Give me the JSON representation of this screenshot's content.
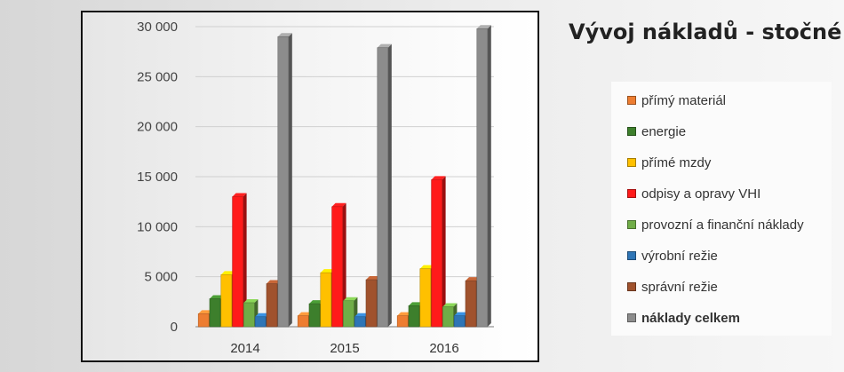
{
  "chart_data": {
    "type": "bar",
    "title": "Vývoj nákladů - stočné",
    "categories": [
      "2014",
      "2015",
      "2016"
    ],
    "ylim": [
      0,
      30000
    ],
    "yticks": [
      0,
      5000,
      10000,
      15000,
      20000,
      25000,
      30000
    ],
    "ytick_labels": [
      "0",
      "5 000",
      "10 000",
      "15 000",
      "20 000",
      "25 000",
      "30 000"
    ],
    "grid": true,
    "legend_position": "right",
    "series": [
      {
        "name": "přímý materiál",
        "color": "#ed7d31",
        "bold": false,
        "values": [
          1300,
          1100,
          1100
        ]
      },
      {
        "name": "energie",
        "color": "#3d7f2c",
        "bold": false,
        "values": [
          2800,
          2300,
          2100
        ]
      },
      {
        "name": "přímé mzdy",
        "color": "#ffc000",
        "bold": false,
        "values": [
          5200,
          5400,
          5800
        ]
      },
      {
        "name": "odpisy a opravy VHI",
        "color": "#ff1a1a",
        "bold": false,
        "values": [
          13000,
          12000,
          14700
        ]
      },
      {
        "name": "provozní a finanční náklady",
        "color": "#70ad47",
        "bold": false,
        "values": [
          2400,
          2600,
          2000
        ]
      },
      {
        "name": "výrobní režie",
        "color": "#2e75b6",
        "bold": false,
        "values": [
          1000,
          1000,
          1100
        ]
      },
      {
        "name": "správní režie",
        "color": "#a0522d",
        "bold": false,
        "values": [
          4300,
          4700,
          4600
        ]
      },
      {
        "name": "náklady celkem",
        "color": "#8c8c8c",
        "bold": true,
        "values": [
          29000,
          27900,
          29800
        ]
      }
    ]
  }
}
